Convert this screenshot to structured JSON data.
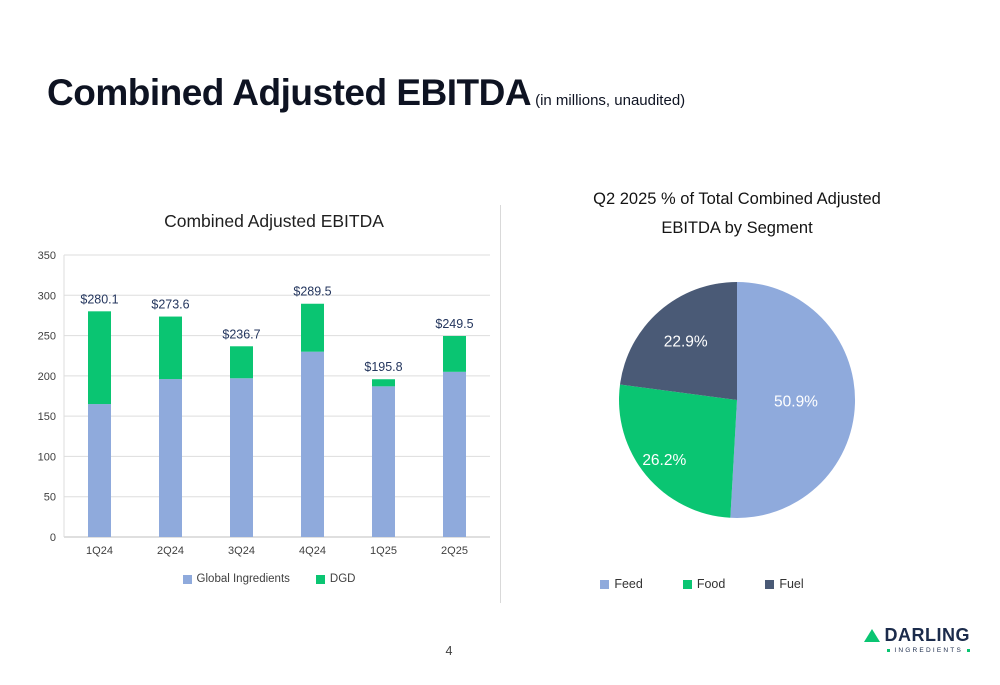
{
  "slide": {
    "title": "Combined Adjusted EBITDA",
    "title_suffix": "(in millions, unaudited)",
    "page_number": "4",
    "logo": {
      "name": "DARLING",
      "subtitle": "INGREDIENTS"
    }
  },
  "colors": {
    "global_ingredients": "#8FAADC",
    "dgd": "#0AC572",
    "feed": "#8FAADC",
    "food": "#0AC572",
    "fuel": "#4A5A76",
    "value_label": "#24365E",
    "axis_text": "#404040",
    "gridline": "#DDDDDD",
    "axis_line": "#BFBFBF"
  },
  "chart_data": [
    {
      "type": "bar",
      "title": "Combined Adjusted EBITDA",
      "categories": [
        "1Q24",
        "2Q24",
        "3Q24",
        "4Q24",
        "1Q25",
        "2Q25"
      ],
      "series": [
        {
          "name": "Global Ingredients",
          "color": "#8FAADC",
          "values": [
            165.0,
            196.0,
            197.0,
            230.0,
            187.0,
            205.0
          ]
        },
        {
          "name": "DGD",
          "color": "#0AC572",
          "values": [
            115.1,
            77.6,
            39.7,
            59.5,
            8.8,
            44.5
          ]
        }
      ],
      "total_labels": [
        "$280.1",
        "$273.6",
        "$236.7",
        "$289.5",
        "$195.8",
        "$249.5"
      ],
      "totals": [
        280.1,
        273.6,
        236.7,
        289.5,
        195.8,
        249.5
      ],
      "stacked": true,
      "ylim": [
        0,
        350
      ],
      "yticks": [
        0,
        50,
        100,
        150,
        200,
        250,
        300,
        350
      ],
      "grid": true,
      "legend_position": "bottom"
    },
    {
      "type": "pie",
      "title": "Q2 2025 % of Total Combined Adjusted EBITDA by Segment",
      "title_lines": [
        "Q2 2025 % of Total Combined Adjusted",
        "EBITDA by Segment"
      ],
      "slices": [
        {
          "label": "Feed",
          "value": 50.9,
          "display": "50.9%",
          "color": "#8FAADC"
        },
        {
          "label": "Food",
          "value": 26.2,
          "display": "26.2%",
          "color": "#0AC572"
        },
        {
          "label": "Fuel",
          "value": 22.9,
          "display": "22.9%",
          "color": "#4A5A76"
        }
      ],
      "start_angle_deg": -90,
      "direction": "clockwise",
      "legend_position": "bottom"
    }
  ]
}
